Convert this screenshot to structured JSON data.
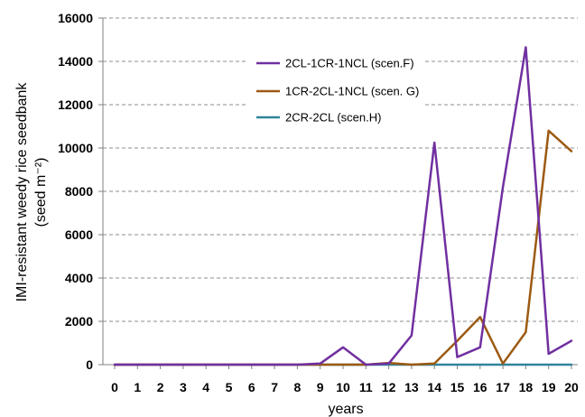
{
  "chart_data": {
    "type": "line",
    "xlabel": "years",
    "ylabel_line1": "IMI-resistant weedy rice seedbank",
    "ylabel_line2": "(seed m⁻²)",
    "x": [
      0,
      1,
      2,
      3,
      4,
      5,
      6,
      7,
      8,
      9,
      10,
      11,
      12,
      13,
      14,
      15,
      16,
      17,
      18,
      19,
      20
    ],
    "ylim": [
      0,
      16000
    ],
    "yticks": [
      0,
      2000,
      4000,
      6000,
      8000,
      10000,
      12000,
      14000,
      16000
    ],
    "ytick_labels": [
      "0",
      "2000",
      "4000",
      "6000",
      "8000",
      "10000",
      "12000",
      "14000",
      "16000"
    ],
    "xtick_labels": [
      "0",
      "1",
      "2",
      "3",
      "4",
      "5",
      "6",
      "7",
      "8",
      "9",
      "10",
      "11",
      "12",
      "13",
      "14",
      "15",
      "16",
      "17",
      "18",
      "19",
      "20"
    ],
    "grid": "horizontal dashed",
    "legend_position": "upper-center",
    "series": [
      {
        "name": "2CL-1CR-1NCL (scen.F)",
        "color": "#7030A0",
        "values": [
          0,
          0,
          0,
          0,
          0,
          0,
          0,
          0,
          0,
          50,
          800,
          0,
          50,
          1350,
          10250,
          350,
          800,
          8200,
          14650,
          500,
          1100
        ]
      },
      {
        "name": "1CR-2CL-1NCL (scen. G)",
        "color": "#9C5A12",
        "values": [
          0,
          0,
          0,
          0,
          0,
          0,
          0,
          0,
          0,
          0,
          0,
          0,
          80,
          0,
          50,
          1100,
          2200,
          50,
          1500,
          10800,
          9850
        ]
      },
      {
        "name": "2CR-2CL (scen.H)",
        "color": "#31849B",
        "values": [
          0,
          0,
          0,
          0,
          0,
          0,
          0,
          0,
          0,
          0,
          0,
          0,
          0,
          0,
          0,
          0,
          0,
          0,
          0,
          0,
          0
        ]
      }
    ]
  }
}
